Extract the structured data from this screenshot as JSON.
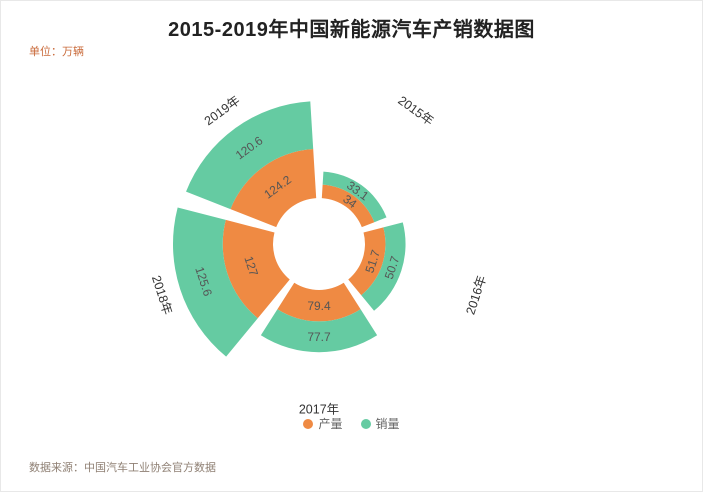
{
  "title": "2015-2019年中国新能源汽车产销数据图",
  "unit_label": "单位：万辆",
  "source_label": "数据来源：中国汽车工业协会官方数据",
  "legend": [
    {
      "label": "产量",
      "color": "#ef8a43"
    },
    {
      "label": "销量",
      "color": "#65cba2"
    }
  ],
  "chart_data": {
    "type": "bar",
    "subtype": "polar-stacked-rose",
    "title": "2015-2019年中国新能源汽车产销数据图",
    "unit": "万辆",
    "categories": [
      "2015年",
      "2016年",
      "2017年",
      "2018年",
      "2019年"
    ],
    "series": [
      {
        "name": "产量",
        "color": "#ef8a43",
        "values": [
          34,
          51.7,
          79.4,
          127,
          124.2
        ]
      },
      {
        "name": "销量",
        "color": "#65cba2",
        "values": [
          33.1,
          50.7,
          77.7,
          125.6,
          120.6
        ]
      }
    ],
    "legend_position": "bottom",
    "start_angle_deg": 0,
    "clockwise": true,
    "grid": false,
    "data_source": "数据来源：中国汽车工业协会官方数据"
  }
}
